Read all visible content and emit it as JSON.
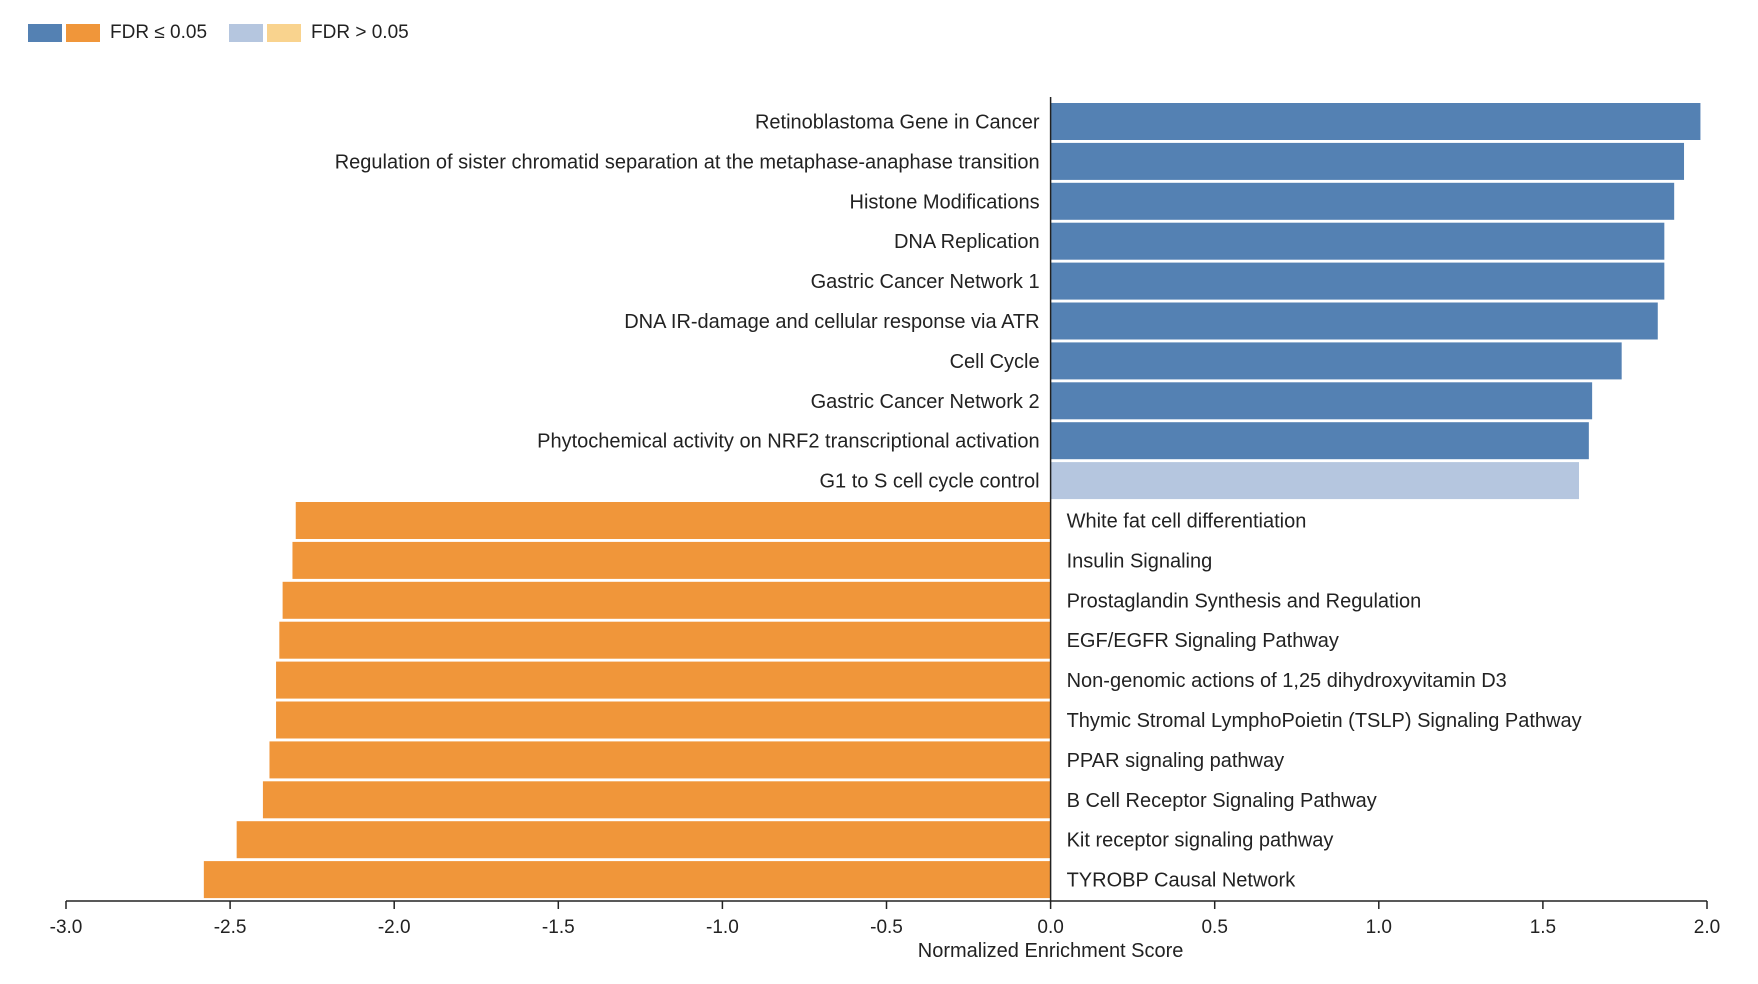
{
  "legend": {
    "significant_label": "FDR ≤ 0.05",
    "nonsignificant_label": "FDR > 0.05"
  },
  "colors": {
    "up_significant": "#5481b3",
    "down_significant": "#f0963a",
    "up_nonsignificant": "#b5c6df",
    "down_nonsignificant": "#f9d38e",
    "axis": "#222222"
  },
  "chart_data": {
    "type": "bar",
    "orientation": "horizontal",
    "xlabel": "Normalized Enrichment Score",
    "xlim": [
      -3.0,
      2.0
    ],
    "xticks": [
      -3.0,
      -2.5,
      -2.0,
      -1.5,
      -1.0,
      -0.5,
      0.0,
      0.5,
      1.0,
      1.5,
      2.0
    ],
    "xtick_labels": [
      "-3.0",
      "-2.5",
      "-2.0",
      "-1.5",
      "-1.0",
      "-0.5",
      "0.0",
      "0.5",
      "1.0",
      "1.5",
      "2.0"
    ],
    "grid": false,
    "legend_position": "top-left",
    "bars": [
      {
        "label": "Retinoblastoma Gene in Cancer",
        "value": 1.98,
        "fdr_significant": true
      },
      {
        "label": "Regulation of sister chromatid separation at the metaphase-anaphase transition",
        "value": 1.93,
        "fdr_significant": true
      },
      {
        "label": "Histone Modifications",
        "value": 1.9,
        "fdr_significant": true
      },
      {
        "label": "DNA Replication",
        "value": 1.87,
        "fdr_significant": true
      },
      {
        "label": "Gastric Cancer Network 1",
        "value": 1.87,
        "fdr_significant": true
      },
      {
        "label": "DNA IR-damage and cellular response via ATR",
        "value": 1.85,
        "fdr_significant": true
      },
      {
        "label": "Cell Cycle",
        "value": 1.74,
        "fdr_significant": true
      },
      {
        "label": "Gastric Cancer Network 2",
        "value": 1.65,
        "fdr_significant": true
      },
      {
        "label": "Phytochemical activity on NRF2 transcriptional activation",
        "value": 1.64,
        "fdr_significant": true
      },
      {
        "label": "G1 to S cell cycle control",
        "value": 1.61,
        "fdr_significant": false
      },
      {
        "label": "White fat cell differentiation",
        "value": -2.3,
        "fdr_significant": true
      },
      {
        "label": "Insulin Signaling",
        "value": -2.31,
        "fdr_significant": true
      },
      {
        "label": "Prostaglandin Synthesis and Regulation",
        "value": -2.34,
        "fdr_significant": true
      },
      {
        "label": "EGF/EGFR Signaling Pathway",
        "value": -2.35,
        "fdr_significant": true
      },
      {
        "label": "Non-genomic actions of 1,25 dihydroxyvitamin D3",
        "value": -2.36,
        "fdr_significant": true
      },
      {
        "label": "Thymic Stromal LymphoPoietin (TSLP) Signaling Pathway",
        "value": -2.36,
        "fdr_significant": true
      },
      {
        "label": "PPAR signaling pathway",
        "value": -2.38,
        "fdr_significant": true
      },
      {
        "label": "B Cell Receptor Signaling Pathway",
        "value": -2.4,
        "fdr_significant": true
      },
      {
        "label": "Kit receptor signaling pathway",
        "value": -2.48,
        "fdr_significant": true
      },
      {
        "label": "TYROBP Causal Network",
        "value": -2.58,
        "fdr_significant": true
      }
    ]
  }
}
